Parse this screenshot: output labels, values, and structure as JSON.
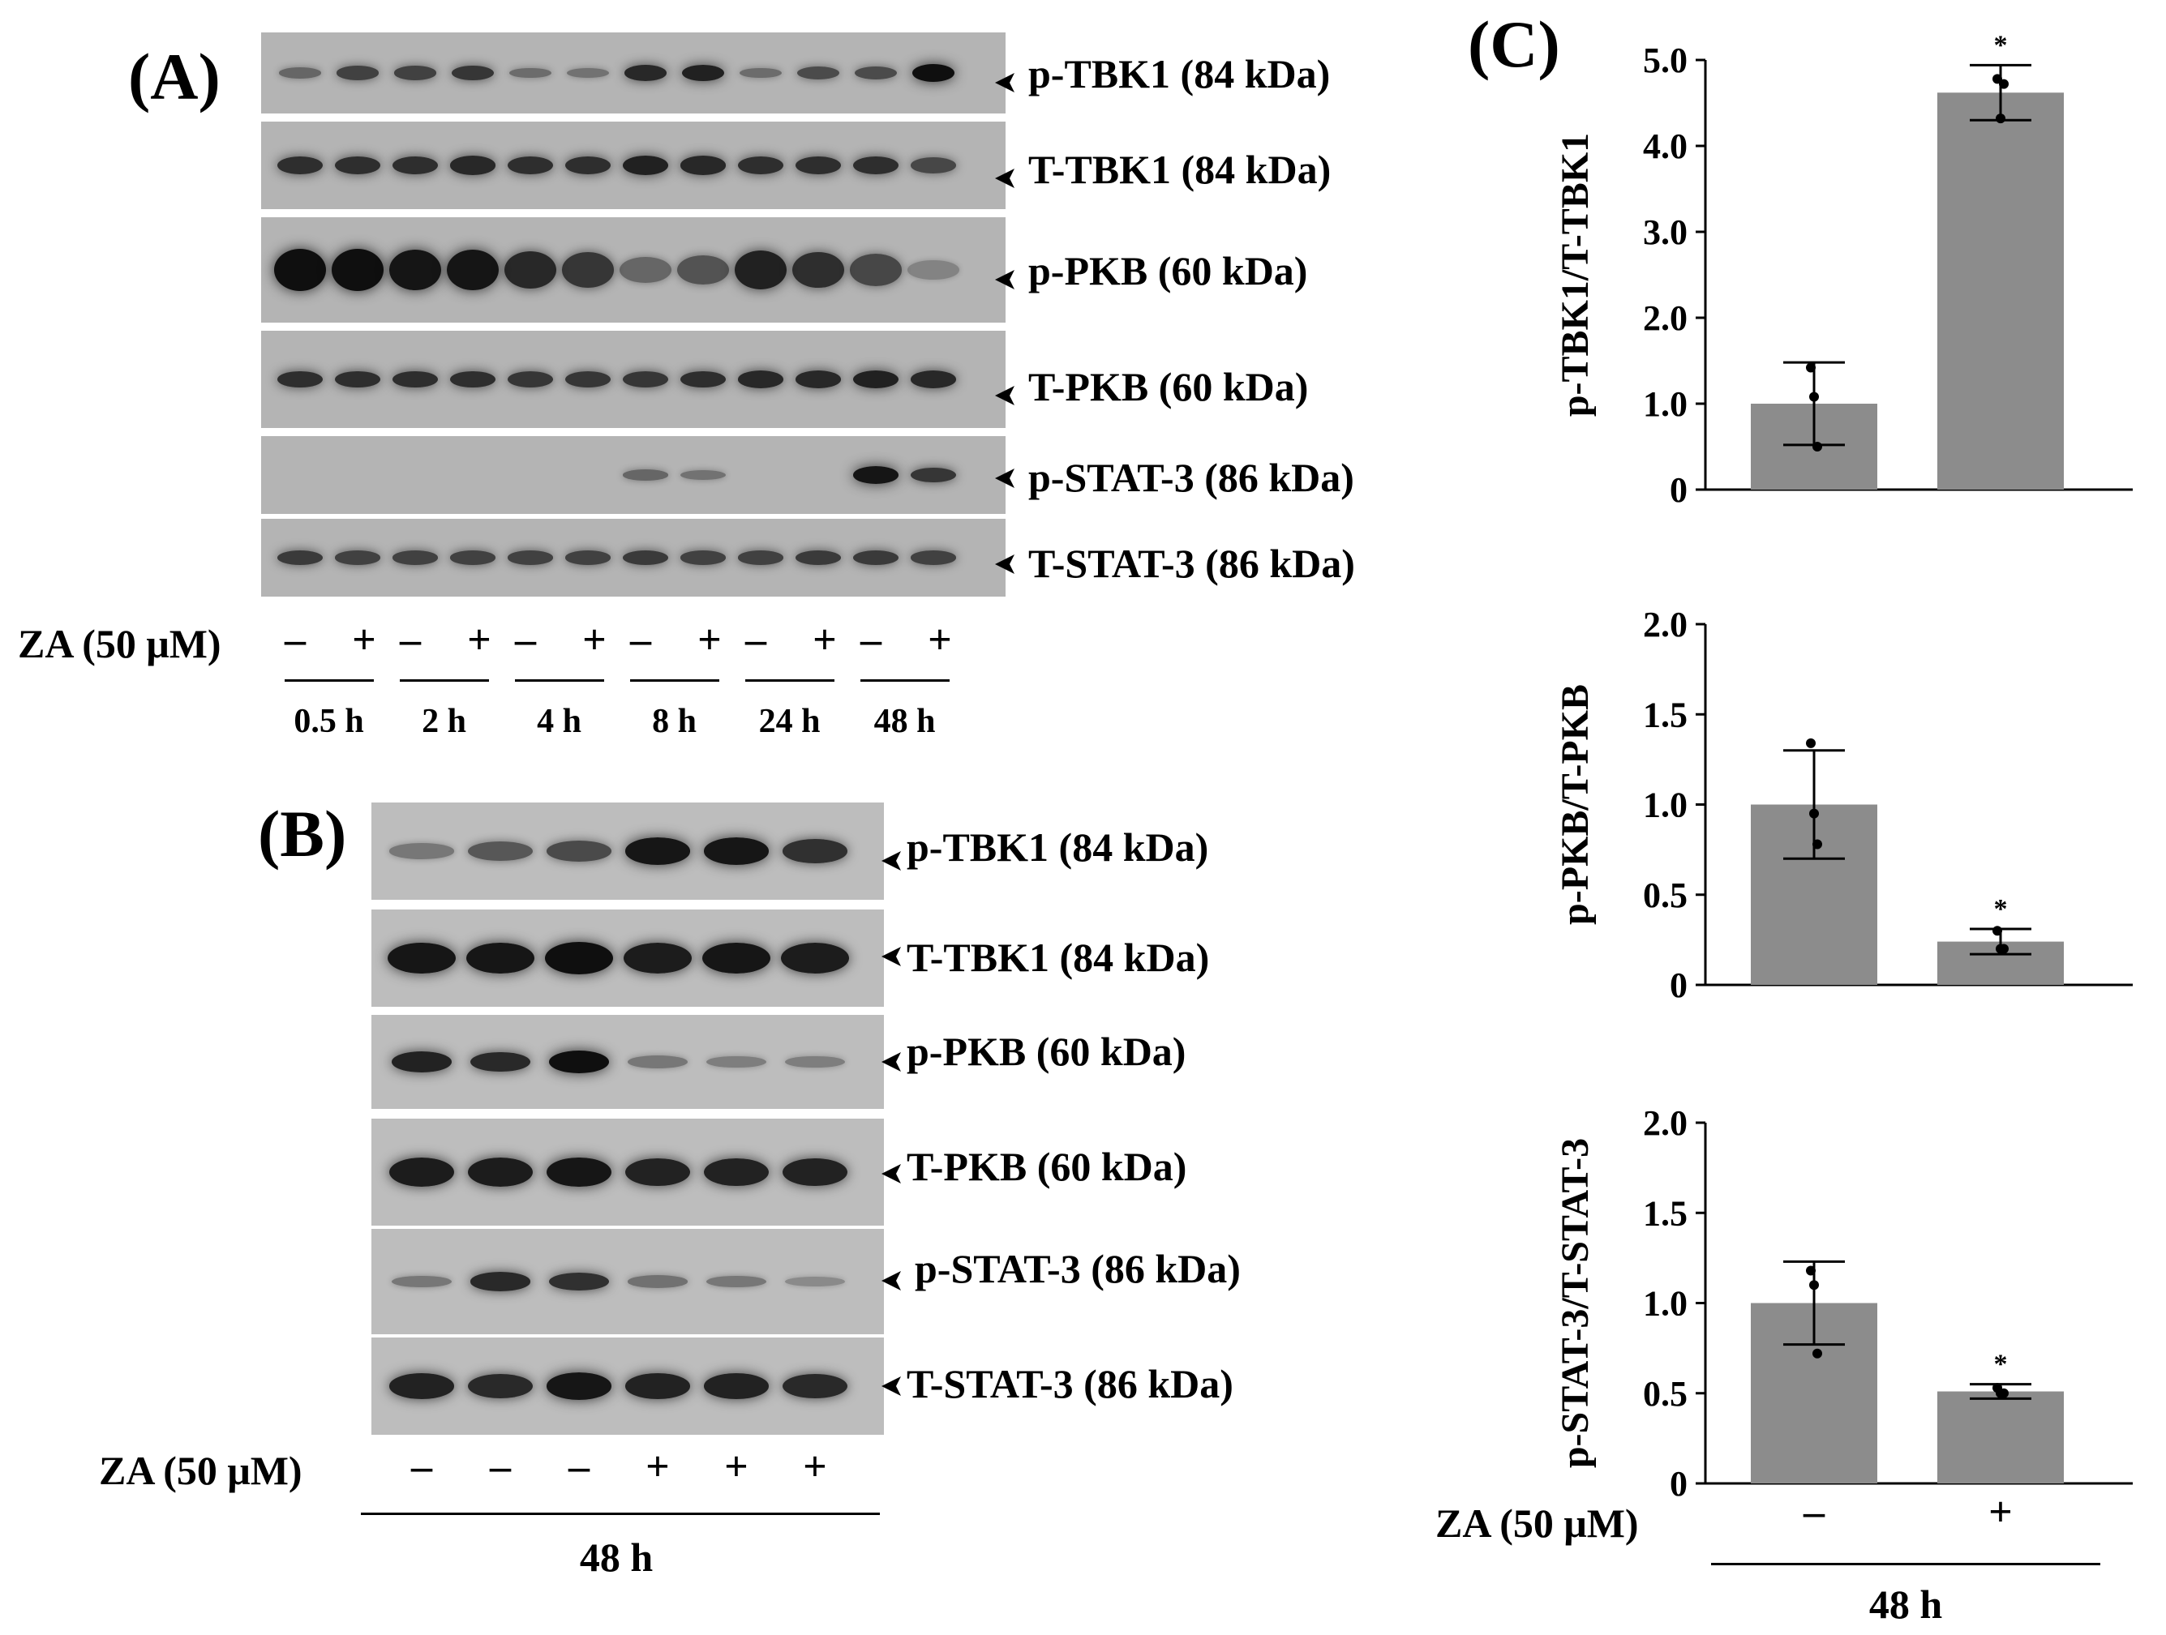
{
  "panelA": {
    "label": "(A)",
    "blots": [
      "p-TBK1 (84 kDa)",
      "T-TBK1 (84 kDa)",
      "p-PKB (60 kDa)",
      "T-PKB (60 kDa)",
      "p-STAT-3 (86 kDa)",
      "T-STAT-3 (86 kDa)"
    ],
    "treatment_label": "ZA (50 μM)",
    "signs": [
      "–",
      "+",
      "–",
      "+",
      "–",
      "+",
      "–",
      "+",
      "–",
      "+",
      "–",
      "+"
    ],
    "timepoints": [
      "0.5 h",
      "2 h",
      "4 h",
      "8 h",
      "24 h",
      "48 h"
    ]
  },
  "panelB": {
    "label": "(B)",
    "blots": [
      "p-TBK1 (84 kDa)",
      "T-TBK1 (84 kDa)",
      "p-PKB (60 kDa)",
      "T-PKB (60 kDa)",
      "p-STAT-3 (86 kDa)",
      "T-STAT-3 (86 kDa)"
    ],
    "treatment_label": "ZA (50 μM)",
    "signs": [
      "–",
      "–",
      "–",
      "+",
      "+",
      "+"
    ],
    "timepoint": "48 h"
  },
  "panelC": {
    "label": "(C)",
    "treatment_label": "ZA (50 μM)",
    "categories": [
      "–",
      "+"
    ],
    "timepoint": "48 h"
  },
  "chart_data": [
    {
      "type": "bar",
      "ylabel": "p-TBK1/T-TBK1",
      "categories": [
        "–",
        "+"
      ],
      "values": [
        1.0,
        4.62
      ],
      "error": [
        0.48,
        0.32
      ],
      "points": [
        [
          1.42,
          1.08,
          0.5
        ],
        [
          4.78,
          4.32,
          4.72
        ]
      ],
      "significance": [
        "",
        "*"
      ],
      "ylim": [
        0,
        5.0
      ],
      "yticks": [
        0,
        1.0,
        2.0,
        3.0,
        4.0,
        5.0
      ],
      "ytick_labels": [
        "0",
        "1.0",
        "2.0",
        "3.0",
        "4.0",
        "5.0"
      ]
    },
    {
      "type": "bar",
      "ylabel": "p-PKB/T-PKB",
      "categories": [
        "–",
        "+"
      ],
      "values": [
        1.0,
        0.24
      ],
      "error": [
        0.3,
        0.07
      ],
      "points": [
        [
          1.34,
          0.95,
          0.78
        ],
        [
          0.3,
          0.2,
          0.2
        ]
      ],
      "significance": [
        "",
        "*"
      ],
      "ylim": [
        0,
        2.0
      ],
      "yticks": [
        0,
        0.5,
        1.0,
        1.5,
        2.0
      ],
      "ytick_labels": [
        "0",
        "0.5",
        "1.0",
        "1.5",
        "2.0"
      ]
    },
    {
      "type": "bar",
      "ylabel": "p-STAT-3/T-STAT-3",
      "categories": [
        "–",
        "+"
      ],
      "values": [
        1.0,
        0.51
      ],
      "error": [
        0.23,
        0.04
      ],
      "points": [
        [
          1.18,
          1.1,
          0.72
        ],
        [
          0.53,
          0.5,
          0.5
        ]
      ],
      "significance": [
        "",
        "*"
      ],
      "ylim": [
        0,
        2.0
      ],
      "yticks": [
        0,
        0.5,
        1.0,
        1.5,
        2.0
      ],
      "ytick_labels": [
        "0",
        "0.5",
        "1.0",
        "1.5",
        "2.0"
      ]
    }
  ],
  "colors": {
    "bar": "#8c8c8c",
    "blot_bg": "#b4b4b4",
    "band": "#141414"
  }
}
